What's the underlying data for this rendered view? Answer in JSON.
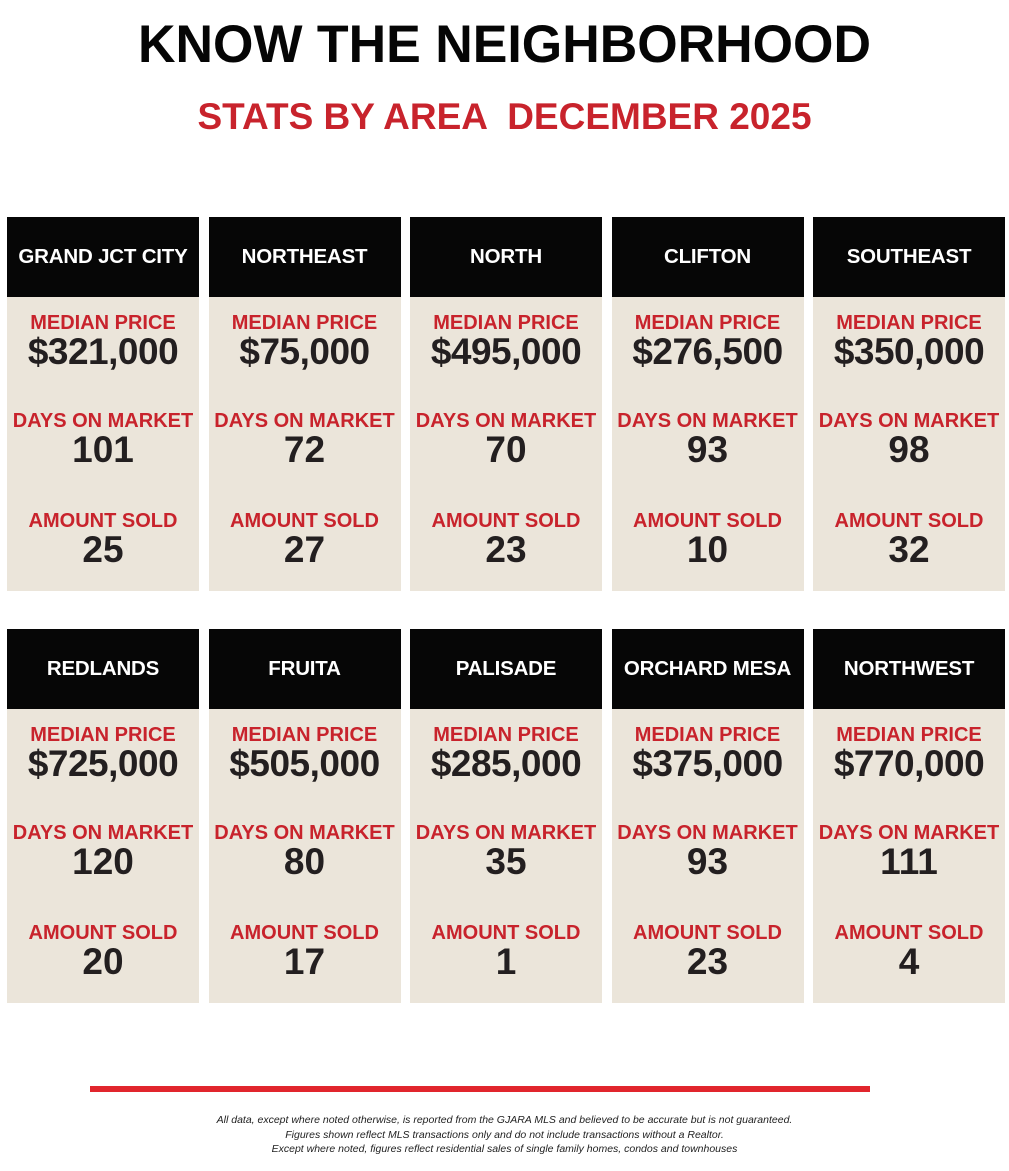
{
  "header": {
    "title": "KNOW THE NEIGHBORHOOD",
    "subtitle": "STATS BY AREA  DECEMBER 2025"
  },
  "labels": {
    "median_price": "MEDIAN PRICE",
    "days_on_market": "DAYS ON MARKET",
    "amount_sold": "AMOUNT SOLD"
  },
  "colors": {
    "accent_red": "#c8232c",
    "header_black": "#060606",
    "card_beige": "#ebe5da",
    "value_dark": "#231f20",
    "rule_red": "#e1252d"
  },
  "areas": [
    {
      "name": "GRAND JCT CITY",
      "median_price": "$321,000",
      "days_on_market": "101",
      "amount_sold": "25"
    },
    {
      "name": "NORTHEAST",
      "median_price": "$75,000",
      "days_on_market": "72",
      "amount_sold": "27"
    },
    {
      "name": "NORTH",
      "median_price": "$495,000",
      "days_on_market": "70",
      "amount_sold": "23"
    },
    {
      "name": "CLIFTON",
      "median_price": "$276,500",
      "days_on_market": "93",
      "amount_sold": "10"
    },
    {
      "name": "SOUTHEAST",
      "median_price": "$350,000",
      "days_on_market": "98",
      "amount_sold": "32"
    },
    {
      "name": "REDLANDS",
      "median_price": "$725,000",
      "days_on_market": "120",
      "amount_sold": "20"
    },
    {
      "name": "FRUITA",
      "median_price": "$505,000",
      "days_on_market": "80",
      "amount_sold": "17"
    },
    {
      "name": "PALISADE",
      "median_price": "$285,000",
      "days_on_market": "35",
      "amount_sold": "1"
    },
    {
      "name": "ORCHARD MESA",
      "median_price": "$375,000",
      "days_on_market": "93",
      "amount_sold": "23"
    },
    {
      "name": "NORTHWEST",
      "median_price": "$770,000",
      "days_on_market": "111",
      "amount_sold": "4"
    }
  ],
  "footer": {
    "lines": [
      "All data, except where noted otherwise, is reported from the GJARA MLS and believed to be accurate but is not guaranteed.",
      "Figures shown reflect MLS transactions only and do not include transactions without a Realtor.",
      "Except where noted, figures reflect residential sales of single family homes, condos and townhouses"
    ]
  }
}
